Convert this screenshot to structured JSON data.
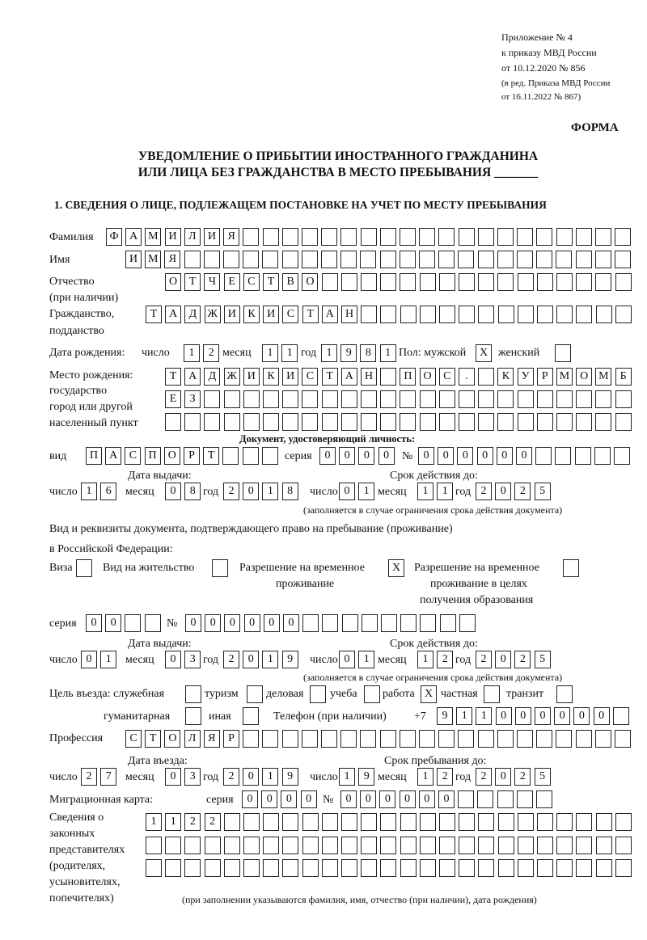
{
  "header": {
    "appendix_lines": [
      "Приложение № 4",
      "к приказу МВД России",
      "от 10.12.2020 № 856"
    ],
    "edition_lines": [
      "(в ред. Приказа МВД России",
      "от 16.11.2022 № 867)"
    ],
    "form_label": "ФОРМА",
    "title_line1": "УВЕДОМЛЕНИЕ О ПРИБЫТИИ ИНОСТРАННОГО ГРАЖДАНИНА",
    "title_line2": "ИЛИ ЛИЦА БЕЗ ГРАЖДАНСТВА В МЕСТО ПРЕБЫВАНИЯ _______",
    "section1": "1. СВЕДЕНИЯ О ЛИЦЕ, ПОДЛЕЖАЩЕМ ПОСТАНОВКЕ НА УЧЕТ ПО МЕСТУ ПРЕБЫВАНИЯ"
  },
  "labels": {
    "surname": "Фамилия",
    "name": "Имя",
    "patronymic": "Отчество",
    "patronymic_note": "(при наличии)",
    "citizenship": "Гражданство,",
    "citizenship2": "подданство",
    "birth_date": "Дата рождения:",
    "day": "число",
    "month": "месяц",
    "year": "год",
    "sex": "Пол: мужской",
    "female": "женский",
    "birth_place": "Место рождения:",
    "bp2": "государство",
    "bp3": "город или другой",
    "bp4": "населенный пункт",
    "id_doc": "Документ, удостоверяющий личность:",
    "kind": "вид",
    "series": "серия",
    "number": "№",
    "issue_date": "Дата выдачи:",
    "valid_until": "Срок действия до:",
    "valid_note": "(заполняется в случае ограничения срока действия документа)",
    "right_doc1": "Вид и реквизиты документа, подтверждающего право на пребывание (проживание)",
    "right_doc2": "в Российской Федерации:",
    "visa": "Виза",
    "residence": "Вид на жительство",
    "temp1": "Разрешение на временное",
    "temp2": "проживание",
    "edu1": "Разрешение на временное",
    "edu2": "проживание в целях",
    "edu3": "получения образования",
    "purpose": "Цель въезда: служебная",
    "tourism": "туризм",
    "business": "деловая",
    "study": "учеба",
    "work": "работа",
    "private": "частная",
    "transit": "транзит",
    "humanitarian": "гуманитарная",
    "other": "иная",
    "phone": "Телефон (при наличии)",
    "phone_prefix": "+7",
    "profession": "Профессия",
    "entry_date": "Дата въезда:",
    "stay_until": "Срок пребывания до:",
    "migration_card": "Миграционная карта:",
    "reps": [
      "Сведения о",
      "законных",
      "представителях",
      "(родителях,",
      "усыновителях,",
      "попечителях)"
    ],
    "reps_note": "(при заполнении указываются фамилия, имя, отчество (при наличии), дата рождения)"
  },
  "values": {
    "surname": "ФАМИЛИЯ",
    "name": "ИМЯ",
    "patronymic": "ОТЧЕСТВО",
    "citizenship": "ТАДЖИКИСТАН",
    "birth_day": "12",
    "birth_month": "11",
    "birth_year": "1981",
    "sex_male": "X",
    "sex_female": "",
    "birth_place_1": "ТАДЖИКИСТАН ПОС. КУРМОМБ",
    "birth_place_2": "ЕЗ",
    "birth_place_3": "",
    "doc_kind": "ПАСПОРТ",
    "doc_series": "0000",
    "doc_number": "000000",
    "doc_issue_day": "16",
    "doc_issue_month": "08",
    "doc_issue_year": "2018",
    "doc_valid_day": "01",
    "doc_valid_month": "11",
    "doc_valid_year": "2025",
    "visa": "",
    "residence": "",
    "temp_residence": "X",
    "temp_residence_edu": "",
    "right_series": "00",
    "right_number": "000000",
    "right_issue_day": "01",
    "right_issue_month": "03",
    "right_issue_year": "2019",
    "right_valid_day": "01",
    "right_valid_month": "12",
    "right_valid_year": "2025",
    "p_service": "",
    "p_tourism": "",
    "p_business": "",
    "p_study": "",
    "p_work": "X",
    "p_private": "",
    "p_transit": "",
    "p_humanitarian": "",
    "p_other": "",
    "phone": "911000000",
    "profession": "СТОЛЯР",
    "entry_day": "27",
    "entry_month": "03",
    "entry_year": "2019",
    "stay_day": "19",
    "stay_month": "12",
    "stay_year": "2025",
    "mc_series": "0000",
    "mc_number": "000000",
    "reps_1": "1122",
    "reps_2": "",
    "reps_3": ""
  }
}
